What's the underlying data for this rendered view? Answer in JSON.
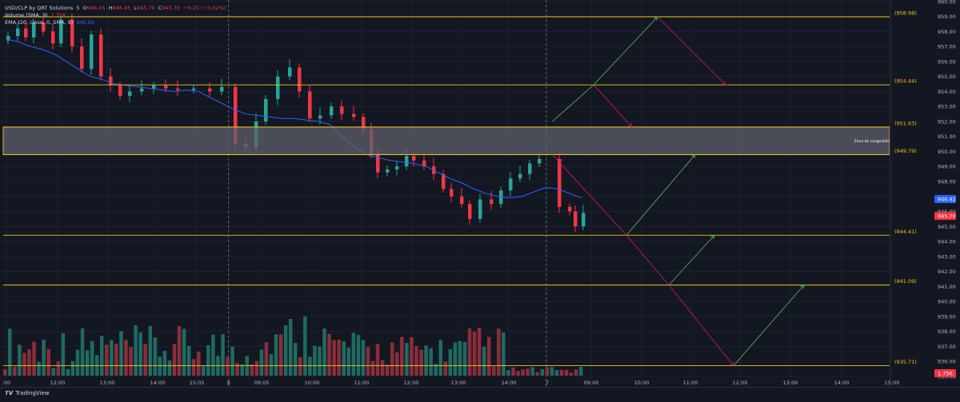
{
  "legend": {
    "symbol": "USD/CLP by QRT Solutions",
    "interval": "5",
    "open_label": "O",
    "open": "946.45",
    "high_label": "H",
    "high": "946.45",
    "low_label": "L",
    "low": "945.70",
    "close_label": "C",
    "close": "945.70",
    "change": "−0.20 (−0.02%)",
    "volume_label": "Volume (SMA, 9)",
    "volume_value": "1.75K",
    "ema_label": "EMA (20, close, 0, SMA, 9)",
    "ema_value": "946.82"
  },
  "branding": {
    "mark": "𝙏𝙑",
    "name": "TradingView"
  },
  "colors": {
    "background": "#131722",
    "up": "#26a69a",
    "down": "#f23645",
    "vol_up": "#1e6b62",
    "vol_down": "#8b2e3a",
    "ema": "#2962ff",
    "level_line": "#f0c419",
    "zone_border": "#f5a623",
    "zone_fill": "#5d606b",
    "projection_up": "#4caf50",
    "projection_down": "#c2185b",
    "grid": "#1e222d",
    "axis_text": "#b2b5be",
    "session_line": "#5d606b",
    "level_label": "#f0c419"
  },
  "chart_data": {
    "type": "candlestick",
    "y_axis": {
      "range": [
        934.3,
        960.1
      ],
      "ticks": [
        "960.00",
        "959.00",
        "958.00",
        "957.00",
        "956.00",
        "955.00",
        "954.00",
        "953.00",
        "952.00",
        "951.00",
        "950.00",
        "949.00",
        "948.00",
        "947.00",
        "946.00",
        "945.00",
        "944.00",
        "943.00",
        "942.00",
        "941.00",
        "940.00",
        "939.00",
        "938.00",
        "937.00",
        "936.00",
        "935.00"
      ]
    },
    "x_axis": {
      "ticks": [
        ":00",
        "12:00",
        "13:00",
        "14:00",
        "15:05",
        "6",
        "09:05",
        "10:00",
        "11:00",
        "12:00",
        "13:00",
        "14:00",
        "7",
        "09:00",
        "10:00",
        "11:00",
        "12:00",
        "13:00",
        "14:00",
        "15:00"
      ]
    },
    "price_labels": [
      {
        "value": 946.82,
        "text": "946.82",
        "color": "#2962ff"
      },
      {
        "value": 945.7,
        "text": "945.70",
        "color": "#f23645"
      }
    ],
    "volume_label": {
      "text": "1.75K",
      "color": "#f23645"
    },
    "levels": [
      {
        "value": 958.98,
        "label": "(958.98)"
      },
      {
        "value": 954.44,
        "label": "(954.44)"
      },
      {
        "value": 951.63,
        "label": "(951.63)"
      },
      {
        "value": 949.79,
        "label": "(949.79)"
      },
      {
        "value": 944.41,
        "label": "(944.41)"
      },
      {
        "value": 941.09,
        "label": "(941.09)"
      },
      {
        "value": 935.71,
        "label": "(935.71)"
      }
    ],
    "zone": {
      "top": 951.63,
      "bottom": 949.79,
      "label": "Zona de congestión"
    },
    "ema": [
      957.5,
      957.3,
      957.0,
      956.8,
      956.5,
      956.0,
      955.5,
      955.0,
      954.8,
      954.5,
      954.4,
      954.3,
      954.2,
      954.1,
      954.0,
      954.1,
      954.0,
      953.6,
      953.2,
      952.8,
      952.5,
      952.4,
      952.3,
      952.2,
      952.2,
      952.1,
      952.0,
      951.8,
      951.0,
      950.3,
      949.8,
      949.6,
      949.4,
      949.3,
      949.2,
      949.0,
      948.6,
      948.2,
      947.9,
      947.5,
      947.2,
      947.0,
      946.9,
      947.0,
      947.3,
      947.6,
      947.5,
      947.2,
      946.9
    ],
    "projections": {
      "up": [
        [
          [
            690.5,
            952.0
          ],
          [
            742.0,
            954.44
          ],
          [
            822.0,
            958.98
          ]
        ],
        [
          [
            783.0,
            944.41
          ],
          [
            869.0,
            949.79
          ]
        ],
        [
          [
            836.0,
            941.09
          ],
          [
            893.0,
            944.41
          ]
        ],
        [
          [
            917.0,
            935.71
          ],
          [
            1005.0,
            941.09
          ]
        ]
      ],
      "down": [
        [
          [
            822.0,
            958.98
          ],
          [
            907.0,
            954.44
          ]
        ],
        [
          [
            742.0,
            954.44
          ],
          [
            790.0,
            951.63
          ]
        ],
        [
          [
            690.5,
            949.79
          ],
          [
            783.0,
            944.41
          ],
          [
            836.0,
            941.09
          ],
          [
            917.0,
            935.71
          ]
        ]
      ]
    }
  }
}
